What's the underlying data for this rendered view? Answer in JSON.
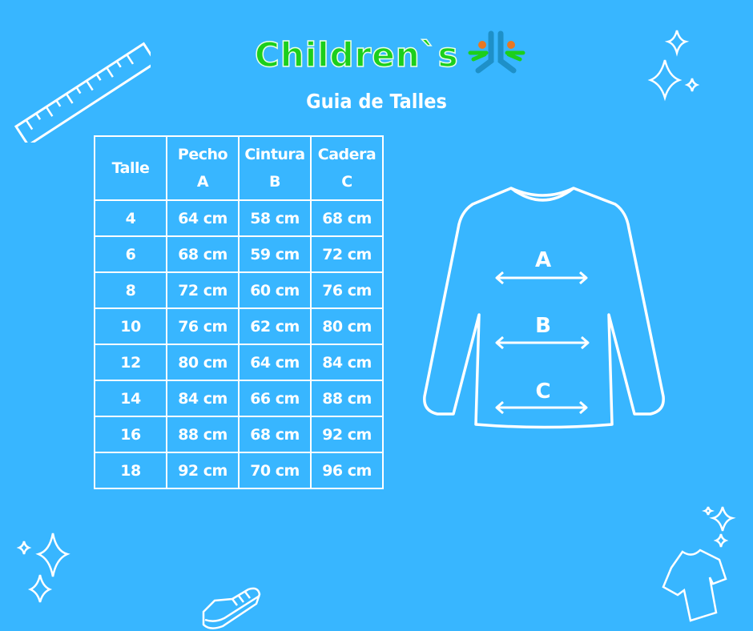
{
  "brand": {
    "name": "Children`s",
    "colors": {
      "green": "#1ccf1c",
      "blue": "#1e90c8",
      "orange": "#e87722",
      "background": "#38b6ff"
    }
  },
  "title": "Guia de Talles",
  "table": {
    "headers": [
      {
        "label": "Talle",
        "sub": ""
      },
      {
        "label": "Pecho",
        "sub": "A"
      },
      {
        "label": "Cintura",
        "sub": "B"
      },
      {
        "label": "Cadera",
        "sub": "C"
      }
    ],
    "rows": [
      [
        "4",
        "64 cm",
        "58 cm",
        "68 cm"
      ],
      [
        "6",
        "68 cm",
        "59 cm",
        "72 cm"
      ],
      [
        "8",
        "72 cm",
        "60 cm",
        "76 cm"
      ],
      [
        "10",
        "76 cm",
        "62 cm",
        "80 cm"
      ],
      [
        "12",
        "80 cm",
        "64 cm",
        "84 cm"
      ],
      [
        "14",
        "84 cm",
        "66 cm",
        "88 cm"
      ],
      [
        "16",
        "88 cm",
        "68 cm",
        "92 cm"
      ],
      [
        "18",
        "92 cm",
        "70 cm",
        "96 cm"
      ]
    ]
  },
  "diagram": {
    "labels": [
      "A",
      "B",
      "C"
    ]
  },
  "icons": [
    "ruler-icon",
    "sparkle-icon",
    "sneaker-icon",
    "tshirt-icon",
    "sweater-icon"
  ]
}
